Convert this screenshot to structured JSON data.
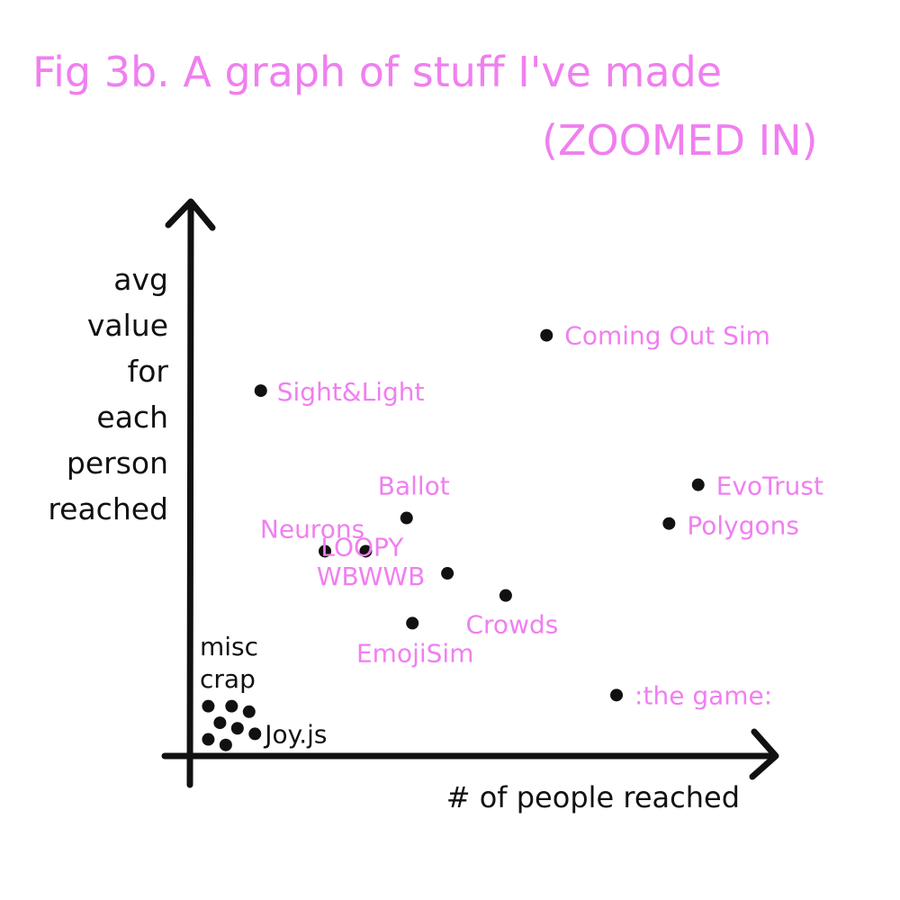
{
  "title": {
    "line1": "Fig 3b. A graph of stuff I've made",
    "line2": "(ZOOMED IN)"
  },
  "colors": {
    "accent": "#f07ff0",
    "ink": "#111111"
  },
  "chart_data": {
    "type": "scatter",
    "title": "Fig 3b. A graph of stuff I've made (ZOOMED IN)",
    "xlabel": "# of people reached",
    "ylabel": "avg value for each person reached",
    "ylabel_lines": [
      "avg",
      "value",
      "for",
      "each",
      "person",
      "reached"
    ],
    "xlim": [
      0,
      100
    ],
    "ylim": [
      0,
      100
    ],
    "grid": false,
    "legend": "none",
    "ticks": "none",
    "points": [
      {
        "label": "Coming Out Sim",
        "x": 61,
        "y": 76
      },
      {
        "label": "Sight&Light",
        "x": 12,
        "y": 66
      },
      {
        "label": "EvoTrust",
        "x": 87,
        "y": 49
      },
      {
        "label": "Polygons",
        "x": 82,
        "y": 42
      },
      {
        "label": "Ballot",
        "x": 37,
        "y": 43
      },
      {
        "label": "Neurons",
        "x": 23,
        "y": 37
      },
      {
        "label": "LOOPY",
        "x": 30,
        "y": 37
      },
      {
        "label": "WBWWB",
        "x": 44,
        "y": 33
      },
      {
        "label": "Crowds",
        "x": 54,
        "y": 29
      },
      {
        "label": "EmojiSim",
        "x": 38,
        "y": 24
      },
      {
        "label": ":the game:",
        "x": 73,
        "y": 11
      },
      {
        "label": "Joy.js",
        "x": 11,
        "y": 4
      }
    ],
    "cluster": {
      "label": "misc crap",
      "points": [
        {
          "x": 3,
          "y": 9
        },
        {
          "x": 7,
          "y": 9
        },
        {
          "x": 10,
          "y": 8
        },
        {
          "x": 5,
          "y": 6
        },
        {
          "x": 8,
          "y": 5
        },
        {
          "x": 3,
          "y": 3
        },
        {
          "x": 6,
          "y": 2
        }
      ]
    }
  }
}
